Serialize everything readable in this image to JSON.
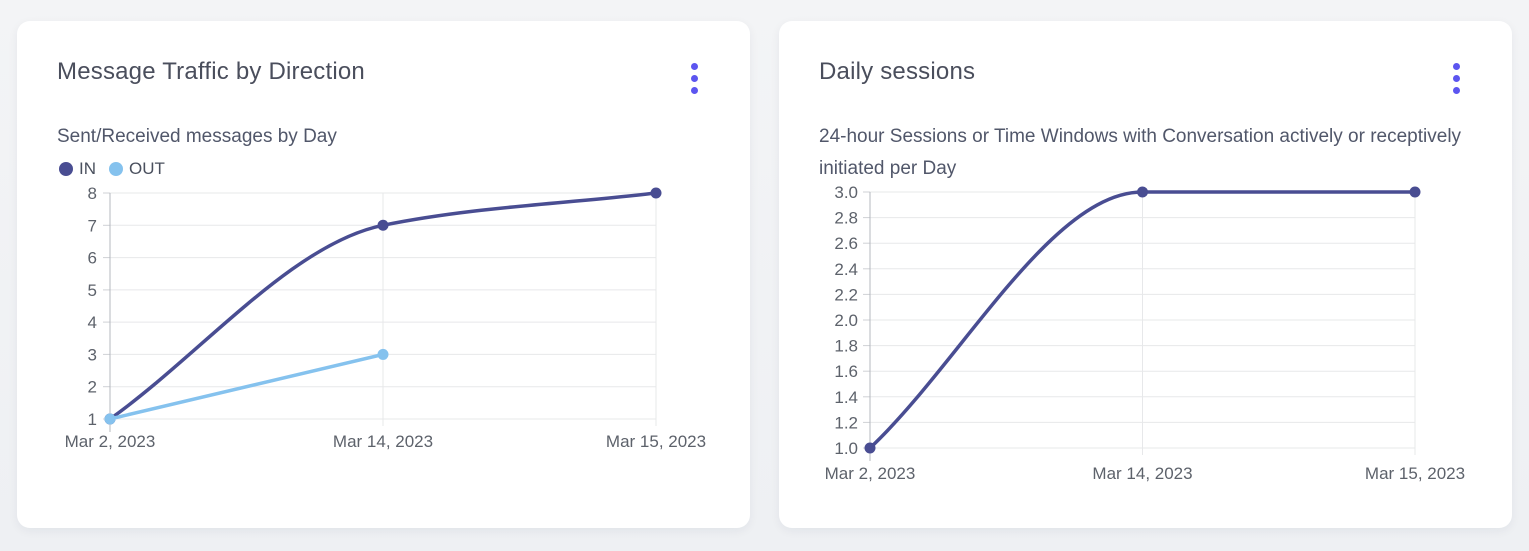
{
  "colors": {
    "page_bg": "#f0f1f4",
    "card_bg": "#ffffff",
    "accent_menu": "#5c55f0",
    "grid": "#e7e8ea",
    "axis": "#b5b8bf",
    "tick": "#cfd1d5",
    "title_text": "#4a4e5c",
    "subtitle_text": "#51576a",
    "axis_label_text": "#5d626b",
    "series_in": "#494d92",
    "series_out": "#85c2ee"
  },
  "icons": {
    "menu": "kebab-menu-icon"
  },
  "chart_data": [
    {
      "type": "line",
      "title": "Message Traffic by Direction",
      "subtitle": "Sent/Received messages by Day",
      "x": [
        "Mar 2, 2023",
        "Mar 14, 2023",
        "Mar 15, 2023"
      ],
      "series": [
        {
          "name": "IN",
          "color": "#494d92",
          "values": [
            1,
            7,
            8
          ]
        },
        {
          "name": "OUT",
          "color": "#85c2ee",
          "values": [
            1,
            3,
            null
          ]
        }
      ],
      "ylim": [
        1,
        8
      ],
      "yticks": [
        1,
        2,
        3,
        4,
        5,
        6,
        7,
        8
      ],
      "ytick_labels": [
        "1",
        "2",
        "3",
        "4",
        "5",
        "6",
        "7",
        "8"
      ],
      "legend": true,
      "legend_position": "top-left",
      "grid": true,
      "line_style": "smooth-monotone"
    },
    {
      "type": "line",
      "title": "Daily sessions",
      "subtitle": "24-hour Sessions or Time Windows with Conversation actively or receptively initiated per Day",
      "x": [
        "Mar 2, 2023",
        "Mar 14, 2023",
        "Mar 15, 2023"
      ],
      "series": [
        {
          "color": "#494d92",
          "values": [
            1,
            3,
            3
          ]
        }
      ],
      "ylim": [
        1,
        3
      ],
      "yticks": [
        1,
        1.2,
        1.4,
        1.6,
        1.8,
        2,
        2.2,
        2.4,
        2.6,
        2.8,
        3
      ],
      "ytick_labels": [
        "1.0",
        "1.2",
        "1.4",
        "1.6",
        "1.8",
        "2.0",
        "2.2",
        "2.4",
        "2.6",
        "2.8",
        "3.0"
      ],
      "legend": false,
      "grid": true,
      "line_style": "smooth-monotone"
    }
  ]
}
